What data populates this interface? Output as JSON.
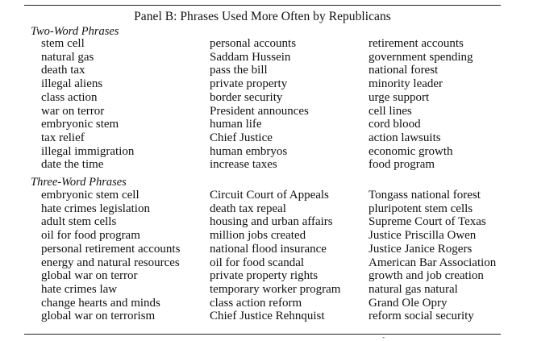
{
  "panel_title": "Panel B: Phrases Used More Often by Republicans",
  "sections": [
    {
      "title": "Two-Word Phrases",
      "columns": [
        [
          "stem cell",
          "natural gas",
          "death tax",
          "illegal aliens",
          "class action",
          "war on terror",
          "embryonic stem",
          "tax relief",
          "illegal immigration",
          "date the time"
        ],
        [
          "personal accounts",
          "Saddam Hussein",
          "pass the bill",
          "private property",
          "border security",
          "President announces",
          "human life",
          "Chief Justice",
          "human embryos",
          "increase taxes"
        ],
        [
          "retirement accounts",
          "government spending",
          "national forest",
          "minority leader",
          "urge support",
          "cell lines",
          "cord blood",
          "action lawsuits",
          "economic growth",
          "food program"
        ]
      ]
    },
    {
      "title": "Three-Word Phrases",
      "columns": [
        [
          "embryonic stem cell",
          "hate crimes legislation",
          "adult stem cells",
          "oil for food program",
          "personal retirement accounts",
          "energy and natural resources",
          "global war on terror",
          "hate crimes law",
          "change hearts and minds",
          "global war on terrorism"
        ],
        [
          "Circuit Court of Appeals",
          "death tax repeal",
          "housing and urban affairs",
          "million jobs created",
          "national flood insurance",
          "oil for food scandal",
          "private property rights",
          "temporary worker program",
          "class action reform",
          "Chief Justice Rehnquist"
        ],
        [
          "Tongass national forest",
          "pluripotent stem cells",
          "Supreme Court of Texas",
          "Justice Priscilla Owen",
          "Justice Janice Rogers",
          "American Bar Association",
          "growth and job creation",
          "natural gas natural",
          "Grand Ole Opry",
          "reform social security"
        ]
      ]
    }
  ]
}
